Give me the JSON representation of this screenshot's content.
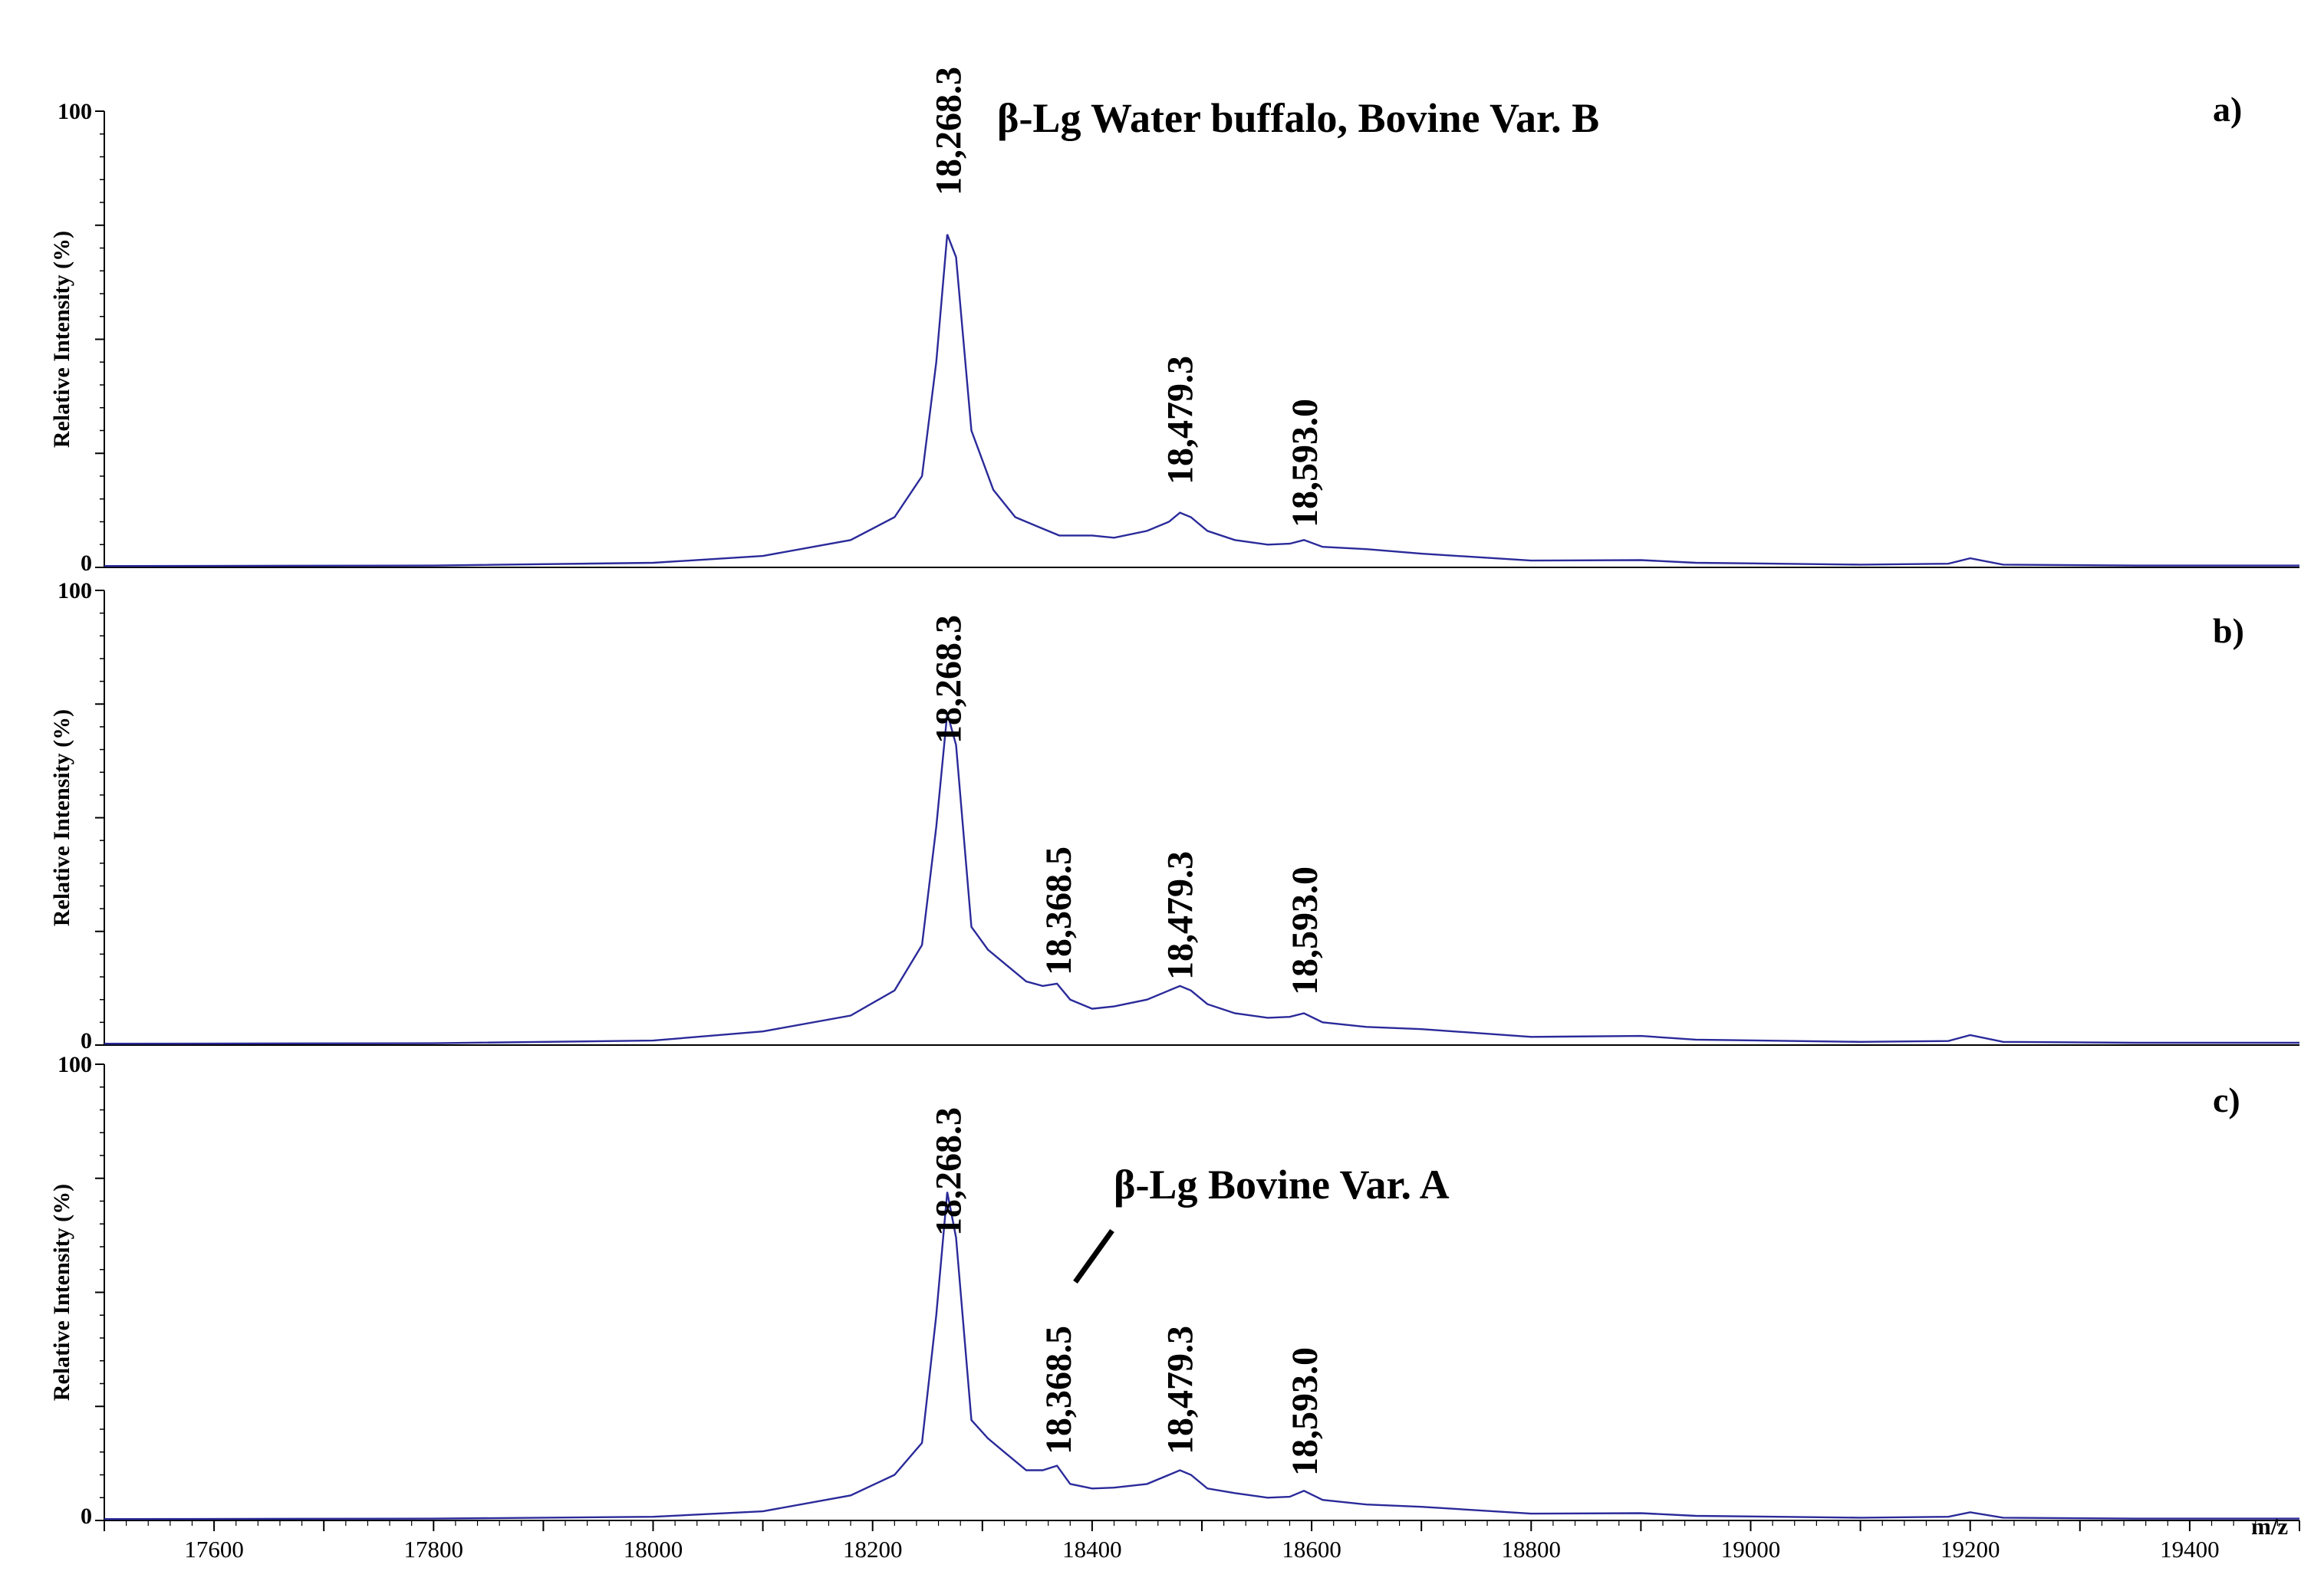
{
  "chart_data": {
    "type": "line",
    "xlabel": "m/z",
    "xlim": [
      17500,
      19500
    ],
    "x_ticks": [
      17600,
      17800,
      18000,
      18200,
      18400,
      18600,
      18800,
      19000,
      19200,
      19400
    ],
    "line_color": "#2a2a9a",
    "panels": [
      {
        "label": "a)",
        "ylabel": "Relative Intensity (%)",
        "ylim": [
          0,
          100
        ],
        "y_tick_labels": [
          "100",
          "0"
        ],
        "annotation": "β-Lg Water buffalo, Bovine Var. B",
        "peaks": [
          {
            "x": 18268.3,
            "text": "18,268.3"
          },
          {
            "x": 18479.3,
            "text": "18,479.3"
          },
          {
            "x": 18593.0,
            "text": "18,593.0"
          }
        ],
        "series": [
          {
            "points": [
              [
                17500,
                0.3
              ],
              [
                17800,
                0.4
              ],
              [
                18000,
                1.0
              ],
              [
                18100,
                2.5
              ],
              [
                18180,
                6.0
              ],
              [
                18220,
                11
              ],
              [
                18245,
                20
              ],
              [
                18258,
                45
              ],
              [
                18268,
                73
              ],
              [
                18276,
                68
              ],
              [
                18290,
                30
              ],
              [
                18310,
                17
              ],
              [
                18330,
                11
              ],
              [
                18350,
                9
              ],
              [
                18370,
                7
              ],
              [
                18400,
                7
              ],
              [
                18420,
                6.5
              ],
              [
                18450,
                8
              ],
              [
                18470,
                10
              ],
              [
                18480,
                12
              ],
              [
                18490,
                11
              ],
              [
                18505,
                8
              ],
              [
                18530,
                6
              ],
              [
                18560,
                5
              ],
              [
                18580,
                5.2
              ],
              [
                18593,
                6
              ],
              [
                18610,
                4.5
              ],
              [
                18650,
                4
              ],
              [
                18700,
                3
              ],
              [
                18800,
                1.5
              ],
              [
                18900,
                1.6
              ],
              [
                18950,
                1.0
              ],
              [
                19100,
                0.6
              ],
              [
                19180,
                0.8
              ],
              [
                19200,
                2.0
              ],
              [
                19230,
                0.6
              ],
              [
                19350,
                0.4
              ],
              [
                19500,
                0.4
              ]
            ]
          }
        ]
      },
      {
        "label": "b)",
        "ylabel": "Relative Intensity (%)",
        "ylim": [
          0,
          100
        ],
        "y_tick_labels": [
          "100",
          "0"
        ],
        "peaks": [
          {
            "x": 18268.3,
            "text": "18,268.3"
          },
          {
            "x": 18368.5,
            "text": "18,368.5"
          },
          {
            "x": 18479.3,
            "text": "18,479.3"
          },
          {
            "x": 18593.0,
            "text": "18,593.0"
          }
        ],
        "series": [
          {
            "points": [
              [
                17500,
                0.3
              ],
              [
                17800,
                0.4
              ],
              [
                18000,
                1.0
              ],
              [
                18100,
                3.0
              ],
              [
                18180,
                6.5
              ],
              [
                18220,
                12
              ],
              [
                18245,
                22
              ],
              [
                18258,
                48
              ],
              [
                18268,
                73
              ],
              [
                18276,
                66
              ],
              [
                18290,
                26
              ],
              [
                18305,
                21
              ],
              [
                18320,
                18
              ],
              [
                18340,
                14
              ],
              [
                18355,
                13
              ],
              [
                18368,
                13.5
              ],
              [
                18380,
                10
              ],
              [
                18400,
                8
              ],
              [
                18420,
                8.5
              ],
              [
                18450,
                10
              ],
              [
                18470,
                12
              ],
              [
                18480,
                13
              ],
              [
                18490,
                12
              ],
              [
                18505,
                9
              ],
              [
                18530,
                7
              ],
              [
                18560,
                6
              ],
              [
                18580,
                6.2
              ],
              [
                18593,
                7
              ],
              [
                18610,
                5
              ],
              [
                18650,
                4
              ],
              [
                18700,
                3.5
              ],
              [
                18800,
                1.8
              ],
              [
                18900,
                2.0
              ],
              [
                18950,
                1.2
              ],
              [
                19100,
                0.7
              ],
              [
                19180,
                0.9
              ],
              [
                19200,
                2.2
              ],
              [
                19230,
                0.7
              ],
              [
                19350,
                0.5
              ],
              [
                19500,
                0.5
              ]
            ]
          }
        ]
      },
      {
        "label": "c)",
        "ylabel": "Relative Intensity (%)",
        "ylim": [
          0,
          100
        ],
        "y_tick_labels": [
          "100",
          "0"
        ],
        "annotation": "β-Lg Bovine Var. A",
        "peaks": [
          {
            "x": 18268.3,
            "text": "18,268.3"
          },
          {
            "x": 18368.5,
            "text": "18,368.5"
          },
          {
            "x": 18479.3,
            "text": "18,479.3"
          },
          {
            "x": 18593.0,
            "text": "18,593.0"
          }
        ],
        "series": [
          {
            "points": [
              [
                17500,
                0.3
              ],
              [
                17800,
                0.4
              ],
              [
                18000,
                0.8
              ],
              [
                18100,
                2.0
              ],
              [
                18180,
                5.5
              ],
              [
                18220,
                10
              ],
              [
                18245,
                17
              ],
              [
                18258,
                45
              ],
              [
                18268,
                72
              ],
              [
                18276,
                62
              ],
              [
                18290,
                22
              ],
              [
                18305,
                18
              ],
              [
                18320,
                15
              ],
              [
                18340,
                11
              ],
              [
                18355,
                11
              ],
              [
                18368,
                12
              ],
              [
                18380,
                8
              ],
              [
                18400,
                7
              ],
              [
                18420,
                7.2
              ],
              [
                18450,
                8
              ],
              [
                18470,
                10
              ],
              [
                18480,
                11
              ],
              [
                18490,
                10
              ],
              [
                18505,
                7
              ],
              [
                18530,
                6
              ],
              [
                18560,
                5
              ],
              [
                18580,
                5.2
              ],
              [
                18593,
                6.5
              ],
              [
                18610,
                4.5
              ],
              [
                18650,
                3.5
              ],
              [
                18700,
                3
              ],
              [
                18800,
                1.5
              ],
              [
                18900,
                1.6
              ],
              [
                18950,
                1.0
              ],
              [
                19100,
                0.6
              ],
              [
                19180,
                0.8
              ],
              [
                19200,
                1.8
              ],
              [
                19230,
                0.6
              ],
              [
                19350,
                0.4
              ],
              [
                19500,
                0.4
              ]
            ]
          }
        ]
      }
    ]
  }
}
